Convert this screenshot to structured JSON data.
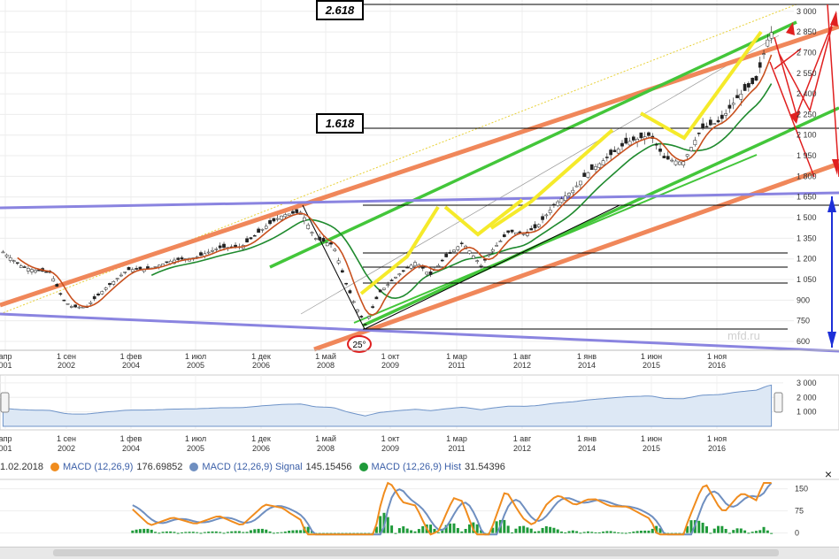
{
  "chart_data": {
    "type": "candlestick",
    "y_ticks": [
      "3 000",
      "2 850",
      "2 700",
      "2 550",
      "2 400",
      "2 250",
      "2 100",
      "1 950",
      "1 800",
      "1 650",
      "1 500",
      "1 350",
      "1 200",
      "1 050",
      "900",
      "750",
      "600"
    ],
    "y_tick_values": [
      3000,
      2850,
      2700,
      2550,
      2400,
      2250,
      2100,
      1950,
      1800,
      1650,
      1500,
      1350,
      1200,
      1050,
      900,
      750,
      600
    ],
    "ylim": [
      555,
      3050
    ],
    "x_ticks": [
      {
        "line1": "апр",
        "line2": "001"
      },
      {
        "line1": "1 сен",
        "line2": "2002"
      },
      {
        "line1": "1 фев",
        "line2": "2004"
      },
      {
        "line1": "1 июл",
        "line2": "2005"
      },
      {
        "line1": "1 дек",
        "line2": "2006"
      },
      {
        "line1": "1 май",
        "line2": "2008"
      },
      {
        "line1": "1 окт",
        "line2": "2009"
      },
      {
        "line1": "1 мар",
        "line2": "2011"
      },
      {
        "line1": "1 авг",
        "line2": "2012"
      },
      {
        "line1": "1 янв",
        "line2": "2014"
      },
      {
        "line1": "1 июн",
        "line2": "2015"
      },
      {
        "line1": "1 ноя",
        "line2": "2016"
      }
    ],
    "price_path": [
      [
        2001.2,
        1250
      ],
      [
        2001.6,
        1150
      ],
      [
        2001.9,
        1120
      ],
      [
        2002.3,
        1100
      ],
      [
        2002.6,
        900
      ],
      [
        2002.8,
        850
      ],
      [
        2003.1,
        850
      ],
      [
        2003.5,
        980
      ],
      [
        2004.0,
        1120
      ],
      [
        2004.5,
        1130
      ],
      [
        2005.0,
        1190
      ],
      [
        2005.5,
        1210
      ],
      [
        2006.0,
        1280
      ],
      [
        2006.5,
        1290
      ],
      [
        2007.0,
        1430
      ],
      [
        2007.4,
        1520
      ],
      [
        2007.8,
        1540
      ],
      [
        2008.1,
        1350
      ],
      [
        2008.5,
        1300
      ],
      [
        2008.8,
        1000
      ],
      [
        2009.0,
        850
      ],
      [
        2009.2,
        720
      ],
      [
        2009.5,
        950
      ],
      [
        2009.9,
        1080
      ],
      [
        2010.3,
        1180
      ],
      [
        2010.6,
        1080
      ],
      [
        2010.9,
        1200
      ],
      [
        2011.3,
        1320
      ],
      [
        2011.7,
        1150
      ],
      [
        2011.9,
        1250
      ],
      [
        2012.3,
        1400
      ],
      [
        2012.6,
        1380
      ],
      [
        2012.9,
        1430
      ],
      [
        2013.3,
        1600
      ],
      [
        2013.7,
        1700
      ],
      [
        2014.0,
        1820
      ],
      [
        2014.5,
        1950
      ],
      [
        2014.9,
        2050
      ],
      [
        2015.4,
        2100
      ],
      [
        2015.7,
        1930
      ],
      [
        2016.1,
        1900
      ],
      [
        2016.5,
        2150
      ],
      [
        2016.9,
        2200
      ],
      [
        2017.3,
        2380
      ],
      [
        2017.7,
        2500
      ],
      [
        2017.95,
        2800
      ],
      [
        2018.05,
        2860
      ],
      [
        2018.1,
        2700
      ]
    ],
    "annotations": {
      "fib_2618": "2.618",
      "fib_1618": "1.618",
      "angle": "25°",
      "watermark": "mfd.ru"
    }
  },
  "navigator": {
    "y_ticks": [
      "3 000",
      "2 000",
      "1 000"
    ],
    "x_ticks": [
      {
        "line1": "апр",
        "line2": "001"
      },
      {
        "line1": "1 сен",
        "line2": "2002"
      },
      {
        "line1": "1 фев",
        "line2": "2004"
      },
      {
        "line1": "1 июл",
        "line2": "2005"
      },
      {
        "line1": "1 дек",
        "line2": "2006"
      },
      {
        "line1": "1 май",
        "line2": "2008"
      },
      {
        "line1": "1 окт",
        "line2": "2009"
      },
      {
        "line1": "1 мар",
        "line2": "2011"
      },
      {
        "line1": "1 авг",
        "line2": "2012"
      },
      {
        "line1": "1 янв",
        "line2": "2014"
      },
      {
        "line1": "1 июн",
        "line2": "2015"
      },
      {
        "line1": "1 ноя",
        "line2": "2016"
      }
    ]
  },
  "legend": {
    "date": "1.02.2018",
    "macd_label": "MACD (12,26,9)",
    "macd_value": "176.69852",
    "signal_label": "MACD (12,26,9) Signal",
    "signal_value": "145.15456",
    "hist_label": "MACD (12,26,9) Hist",
    "hist_value": "31.54396",
    "colors": {
      "macd": "#f08c1e",
      "signal": "#6f8fc0",
      "hist": "#1f9a3a"
    }
  },
  "macd_panel": {
    "y_ticks": [
      "150",
      "75",
      "0"
    ]
  },
  "close_icon": "×"
}
